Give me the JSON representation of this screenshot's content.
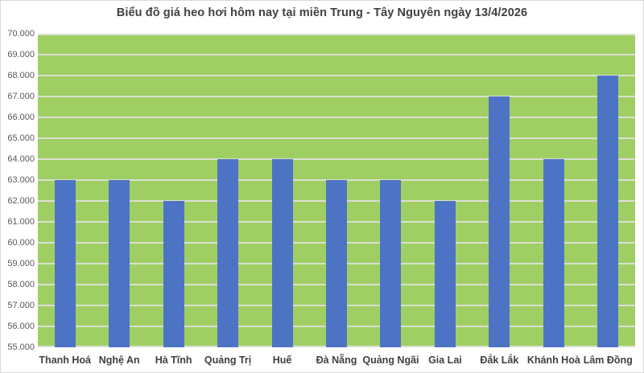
{
  "header": {
    "title": "Biểu đồ giá heo hơi hôm nay tại miền Trung - Tây Nguyên ngày 13/4/2026"
  },
  "chart_data": {
    "type": "bar",
    "title": "Biểu đồ giá heo hơi hôm nay tại miền Trung - Tây Nguyên ngày 13/4/2026",
    "categories": [
      "Thanh Hoá",
      "Nghệ An",
      "Hà Tĩnh",
      "Quảng Trị",
      "Huế",
      "Đà Nẵng",
      "Quảng Ngãi",
      "Gia Lai",
      "Đắk Lắk",
      "Khánh Hoà",
      "Lâm Đồng"
    ],
    "values": [
      63000,
      63000,
      62000,
      64000,
      64000,
      63000,
      63000,
      62000,
      67000,
      64000,
      68000
    ],
    "xlabel": "",
    "ylabel": "",
    "ylim": [
      55000,
      70000
    ],
    "ytick_step": 1000,
    "y_tick_labels": [
      "55.000",
      "56.000",
      "57.000",
      "58.000",
      "59.000",
      "60.000",
      "61.000",
      "62.000",
      "63.000",
      "64.000",
      "65.000",
      "66.000",
      "67.000",
      "68.000",
      "69.000",
      "70.000"
    ],
    "grid": "horizontal",
    "legend": "none",
    "colors": {
      "bar": "#4d74c4",
      "plot_background": "#9fcf63",
      "gridline": "#d9dfd0",
      "title_text": "#404040",
      "x_label_text": "#404040",
      "y_label_text": "#595959",
      "page_background": "#ffffff",
      "outer_border": "#d9d9d9"
    }
  }
}
